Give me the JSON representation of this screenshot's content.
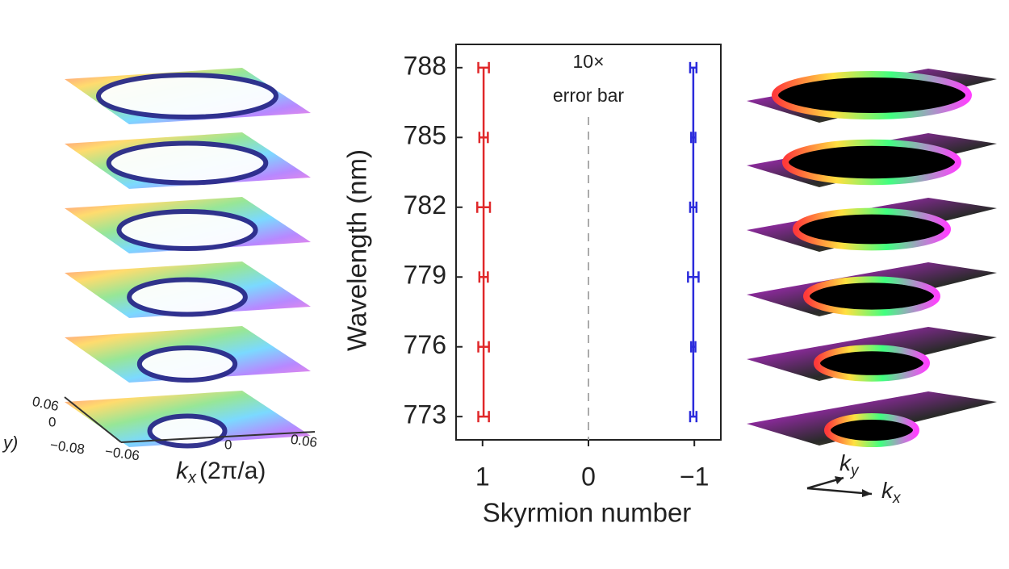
{
  "chart_data": {
    "type": "errorbar",
    "annotation": [
      "10×",
      "error bar"
    ],
    "xlabel": "Skyrmion number",
    "ylabel": "Wavelength (nm)",
    "y": [
      773,
      776,
      779,
      782,
      785,
      788
    ],
    "series": [
      {
        "color": "#e0282a",
        "values": [
          0.99,
          0.99,
          0.99,
          0.99,
          0.99,
          0.99
        ],
        "errors": [
          0.05,
          0.05,
          0.04,
          0.06,
          0.04,
          0.05
        ]
      },
      {
        "color": "#2b2bdc",
        "values": [
          -0.99,
          -0.99,
          -0.99,
          -0.99,
          -0.99,
          -0.99
        ],
        "errors": [
          0.03,
          0.02,
          0.05,
          0.03,
          0.02,
          0.03
        ]
      }
    ],
    "vline": 0,
    "xlim": [
      1.25,
      -1.25
    ],
    "xticks": [
      1,
      0,
      {
        "value": -1,
        "label": "−1"
      }
    ],
    "ylim": [
      772,
      789
    ],
    "yticks": [
      773,
      776,
      779,
      782,
      785,
      788
    ]
  },
  "left_panel": {
    "kx_label": {
      "symbol": "k",
      "sub": "x",
      "unit": "(2π/a)"
    },
    "x_ticks": [
      "−0.06",
      "0",
      "0.06"
    ],
    "y_ticks": [
      "0.06",
      "0",
      "−0.08"
    ],
    "y_label_fragment": "y)"
  },
  "right_panel": {
    "ky": {
      "symbol": "k",
      "sub": "y"
    },
    "kx": {
      "symbol": "k",
      "sub": "x"
    }
  }
}
